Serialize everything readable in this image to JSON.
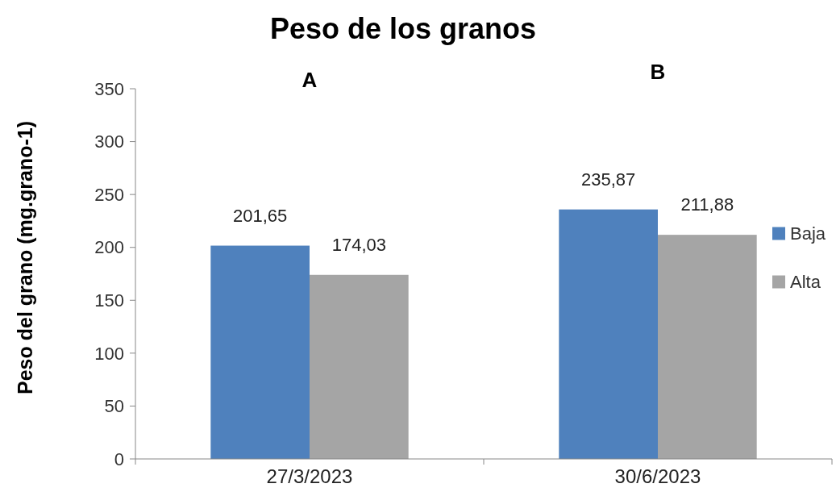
{
  "chart_data": {
    "type": "bar",
    "title": "Peso de los granos",
    "ylabel": "Peso del grano (mg.grano-1)",
    "categories": [
      "27/3/2023",
      "30/6/2023"
    ],
    "series": [
      {
        "name": "Baja",
        "color": "#4f81bd",
        "values": [
          201.65,
          235.87
        ],
        "value_labels": [
          "201,65",
          "235,87"
        ]
      },
      {
        "name": "Alta",
        "color": "#a5a5a5",
        "values": [
          174.03,
          211.88
        ],
        "value_labels": [
          "174,03",
          "211,88"
        ]
      }
    ],
    "ylim": [
      0,
      350
    ],
    "yticks": [
      0,
      50,
      100,
      150,
      200,
      250,
      300,
      350
    ],
    "grid": false,
    "legend": "right",
    "annotations": [
      "A",
      "B"
    ]
  }
}
